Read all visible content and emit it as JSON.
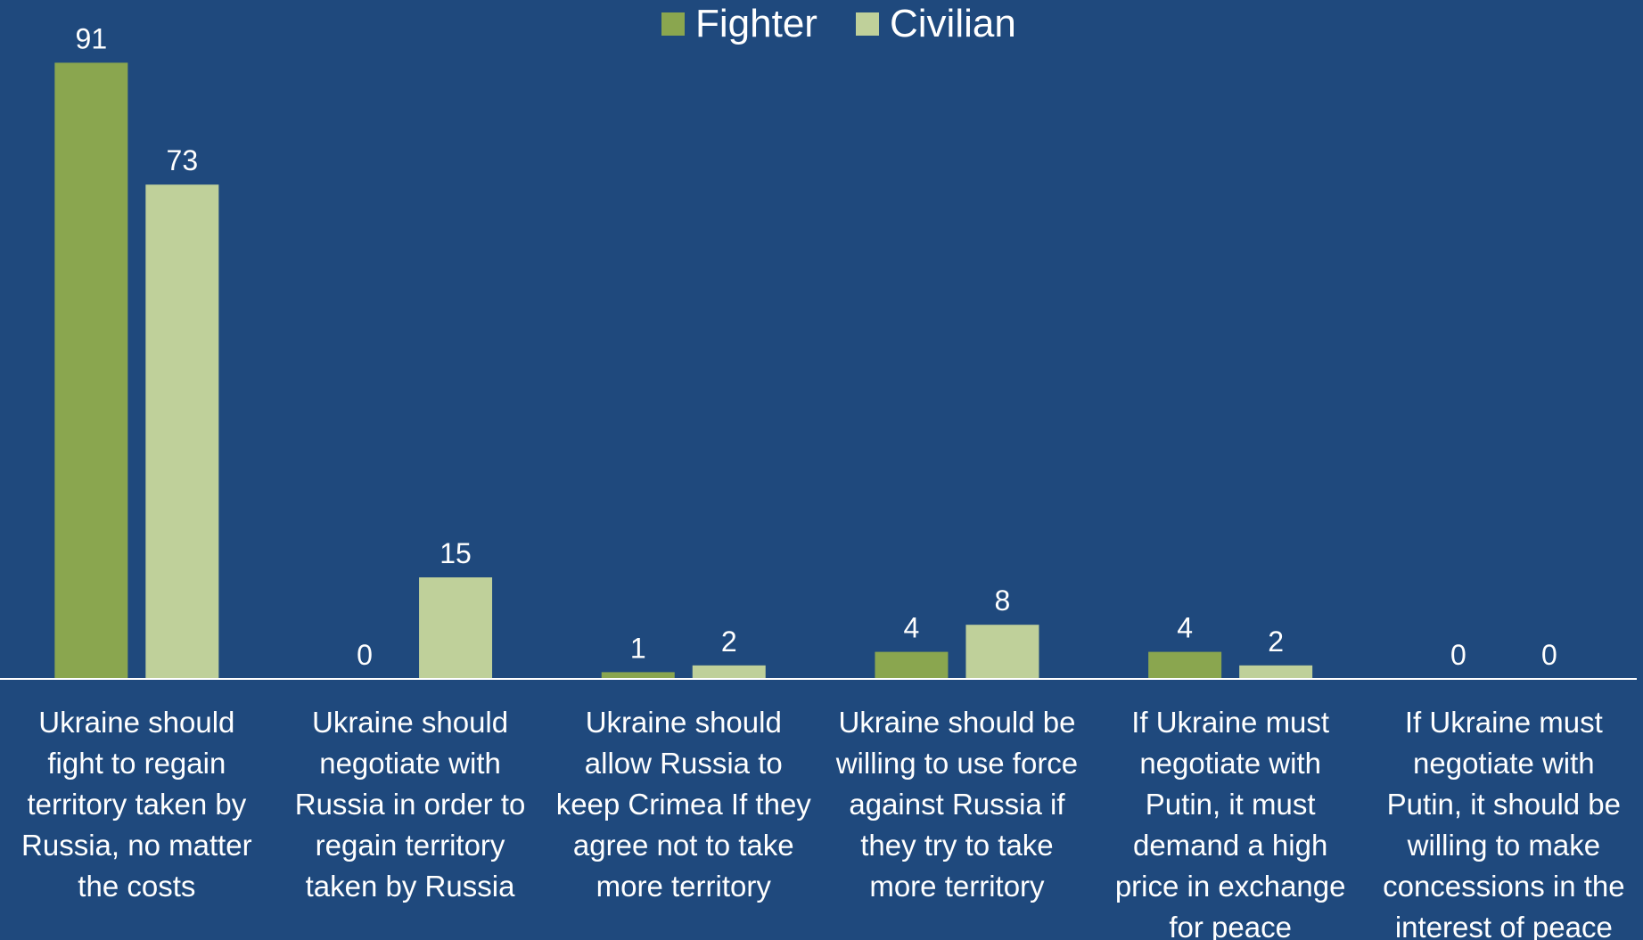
{
  "chart_data": {
    "type": "bar",
    "categories": [
      [
        "Ukraine should",
        "fight to regain",
        "territory taken by",
        "Russia, no matter",
        "the costs"
      ],
      [
        "Ukraine should",
        "negotiate with",
        "Russia in order to",
        "regain territory",
        "taken by Russia"
      ],
      [
        "Ukraine should",
        "allow Russia to",
        "keep Crimea If they",
        "agree not to take",
        "more territory"
      ],
      [
        "Ukraine should be",
        "willing to use force",
        "against Russia if",
        "they try to take",
        "more territory"
      ],
      [
        "If Ukraine must",
        "negotiate with",
        "Putin, it must",
        "demand a high",
        "price in exchange",
        "for peace"
      ],
      [
        "If Ukraine must",
        "negotiate with",
        "Putin, it should be",
        "willing to make",
        "concessions in the",
        "interest of peace"
      ]
    ],
    "series": [
      {
        "name": "Fighter",
        "values": [
          91,
          0,
          1,
          4,
          4,
          0
        ],
        "color": "#8aa64f"
      },
      {
        "name": "Civilian",
        "values": [
          73,
          15,
          2,
          8,
          2,
          0
        ],
        "color": "#bfd09a"
      }
    ],
    "ylim": [
      0,
      100
    ],
    "legend_position": "top-center",
    "grid": false,
    "background_color": "#1f497d",
    "axis_color": "#ffffff",
    "text_color": "#ffffff"
  }
}
